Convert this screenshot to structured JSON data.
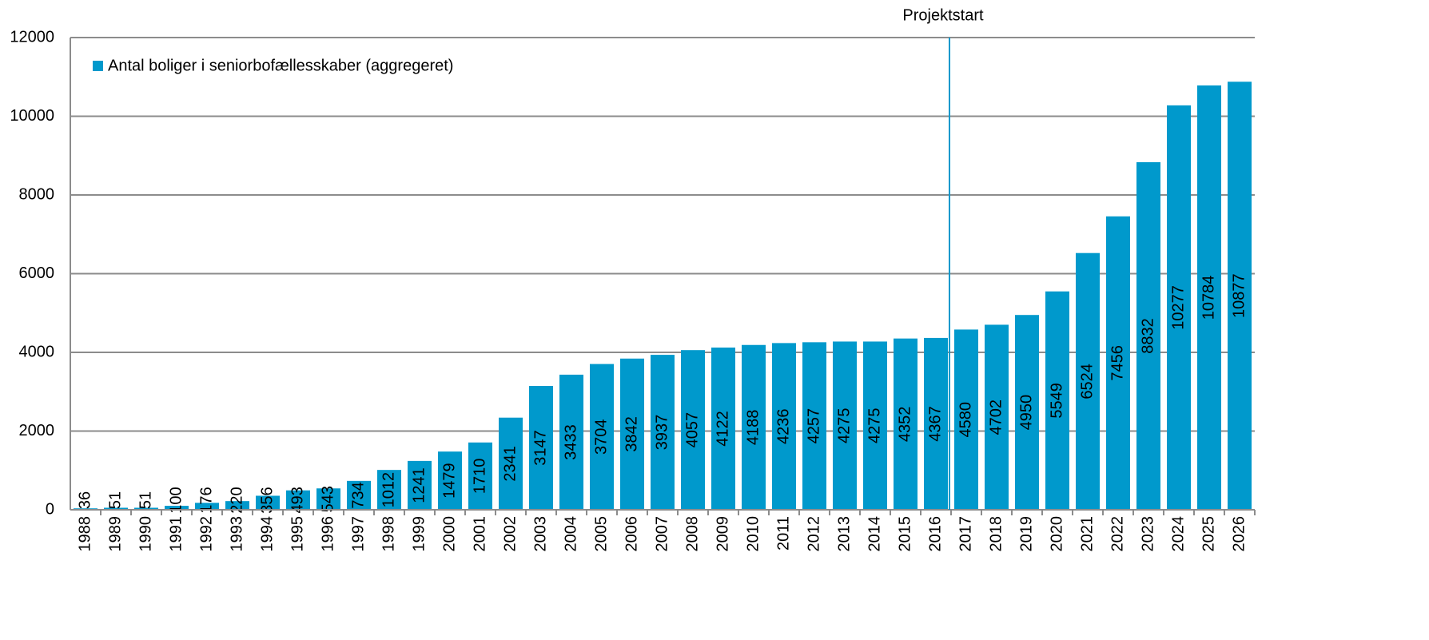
{
  "chart_data": {
    "type": "bar",
    "annotation": "Projektstart",
    "categories": [
      "1988",
      "1989",
      "1990",
      "1991",
      "1992",
      "1993",
      "1994",
      "1995",
      "1996",
      "1997",
      "1998",
      "1999",
      "2000",
      "2001",
      "2002",
      "2003",
      "2004",
      "2005",
      "2006",
      "2007",
      "2008",
      "2009",
      "2010",
      "2011",
      "2012",
      "2013",
      "2014",
      "2015",
      "2016",
      "2017",
      "2018",
      "2019",
      "2020",
      "2021",
      "2022",
      "2023",
      "2024",
      "2025",
      "2026"
    ],
    "series": [
      {
        "name": "Antal boliger i seniorbofællesskaber (aggregeret)",
        "color": "#0099cc",
        "values": [
          36,
          51,
          51,
          100,
          176,
          220,
          356,
          493,
          543,
          734,
          1012,
          1241,
          1479,
          1710,
          2341,
          3147,
          3433,
          3704,
          3842,
          3937,
          4057,
          4122,
          4188,
          4236,
          4257,
          4275,
          4275,
          4352,
          4367,
          4580,
          4702,
          4950,
          5549,
          6524,
          7456,
          8832,
          10277,
          10784,
          10877
        ]
      }
    ],
    "ylim": [
      0,
      12000
    ],
    "yticks": [
      0,
      2000,
      4000,
      6000,
      8000,
      10000,
      12000
    ],
    "grid": true,
    "legend": "top-left"
  }
}
